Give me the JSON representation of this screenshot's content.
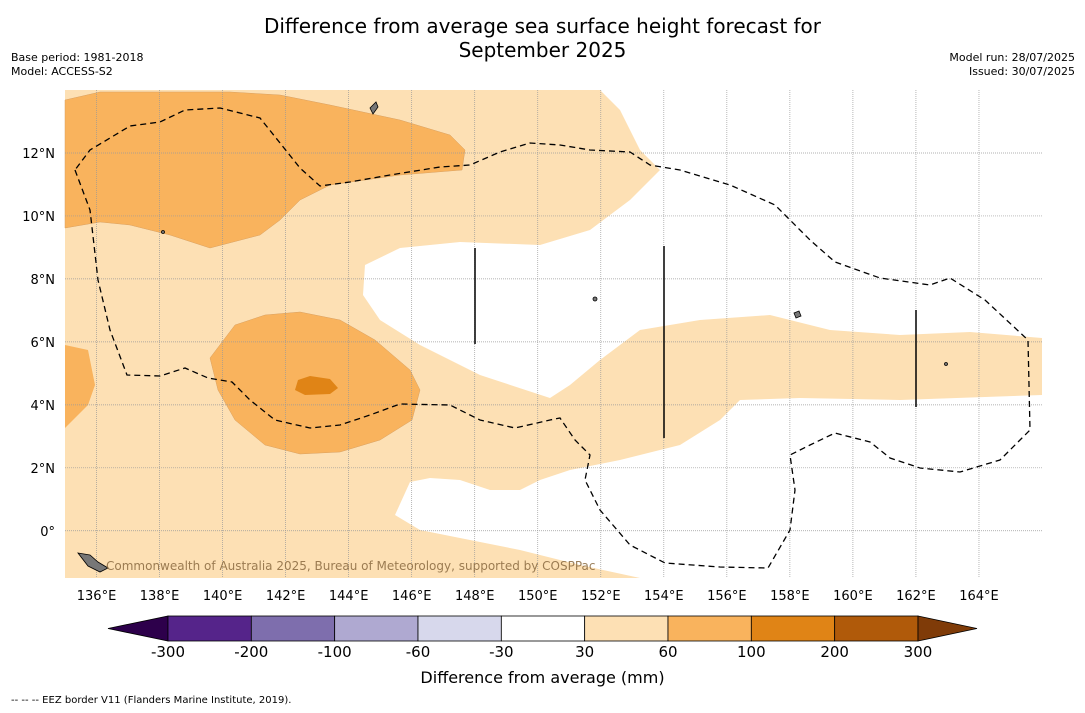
{
  "title": "Difference from average sea surface height forecast for",
  "title_line2": "September 2025",
  "base_period": "Base period: 1981-2018",
  "model": "Model: ACCESS-S2",
  "model_run": "Model run: 28/07/2025",
  "issued": "Issued: 30/07/2025",
  "watermark": "Commonwealth of Australia 2025, Bureau of Meteorology, supported by COSPPac",
  "map": {
    "lon_range": [
      135,
      166
    ],
    "lat_range": [
      -1.5,
      14
    ],
    "x_ticks": [
      "136°E",
      "138°E",
      "140°E",
      "142°E",
      "144°E",
      "146°E",
      "148°E",
      "150°E",
      "152°E",
      "154°E",
      "156°E",
      "158°E",
      "160°E",
      "162°E",
      "164°E"
    ],
    "y_ticks": [
      "0°",
      "2°N",
      "4°N",
      "6°N",
      "8°N",
      "10°N",
      "12°N"
    ],
    "gridlines": true
  },
  "colorbar": {
    "title": "Difference from average (mm)",
    "labels": [
      "-300",
      "-200",
      "-100",
      "-60",
      "-30",
      "30",
      "60",
      "100",
      "200",
      "300"
    ],
    "colors": [
      "#55248a",
      "#7e6ead",
      "#afa9d1",
      "#d7d8ec",
      "#ffffff",
      "#fde0b4",
      "#f9b35d",
      "#e08416",
      "#b05a0a"
    ],
    "extend_low": "#2d004b",
    "extend_high": "#7f3b08"
  },
  "footnote": "--  --  -- EEZ border V11 (Flanders Marine Institute, 2019)."
}
